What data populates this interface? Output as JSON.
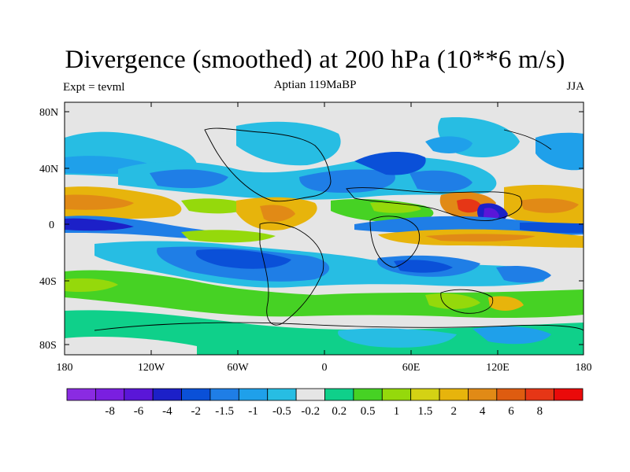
{
  "title": "Divergence (smoothed) at 200 hPa (10**6 m/s)",
  "left_label": "Expt = tevml",
  "center_label": "Aptian  119MaBP",
  "right_label": "JJA",
  "lat_ticks": [
    "80N",
    "40N",
    "0",
    "40S",
    "80S"
  ],
  "lon_ticks": [
    "180",
    "120W",
    "60W",
    "0",
    "60E",
    "120E",
    "180"
  ],
  "colorbar": {
    "colors": [
      "#8a2be2",
      "#7a1fe0",
      "#5a16d8",
      "#1c20c8",
      "#0a50d8",
      "#1f7ee6",
      "#1fa0ea",
      "#27bde3",
      "#e5e5e5",
      "#0fd08a",
      "#46d224",
      "#95d90b",
      "#d4d214",
      "#e7b40c",
      "#e18a16",
      "#de5c10",
      "#e63616",
      "#ea0a0a"
    ],
    "labels": [
      "-8",
      "-6",
      "-4",
      "-2",
      "-1.5",
      "-1",
      "-0.5",
      "-0.2",
      "0.2",
      "0.5",
      "1",
      "1.5",
      "2",
      "4",
      "6",
      "8"
    ]
  }
}
